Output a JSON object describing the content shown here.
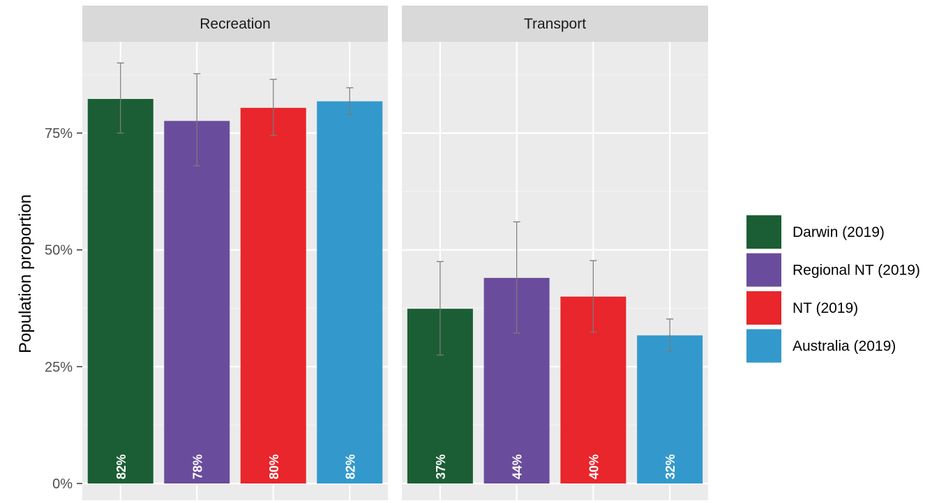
{
  "chart_data": {
    "type": "bar",
    "ylabel": "Population proportion",
    "ylim": [
      0,
      0.95
    ],
    "yticks": [
      {
        "value": 0,
        "label": "0%"
      },
      {
        "value": 0.25,
        "label": "25%"
      },
      {
        "value": 0.5,
        "label": "50%"
      },
      {
        "value": 0.75,
        "label": "75%"
      }
    ],
    "grid": true,
    "legend_position": "right",
    "series": [
      {
        "name": "Darwin (2019)",
        "color": "#1b5e35"
      },
      {
        "name": "Regional NT (2019)",
        "color": "#6a4c9c"
      },
      {
        "name": "NT (2019)",
        "color": "#e8262b"
      },
      {
        "name": "Australia (2019)",
        "color": "#3399cc"
      }
    ],
    "facets": [
      {
        "title": "Recreation",
        "values": [
          0.823,
          0.776,
          0.804,
          0.818
        ],
        "labels": [
          "82%",
          "78%",
          "80%",
          "82%"
        ],
        "error_low": [
          0.75,
          0.68,
          0.745,
          0.79
        ],
        "error_high": [
          0.9,
          0.877,
          0.865,
          0.847
        ]
      },
      {
        "title": "Transport",
        "values": [
          0.374,
          0.44,
          0.4,
          0.317
        ],
        "labels": [
          "37%",
          "44%",
          "40%",
          "32%"
        ],
        "error_low": [
          0.275,
          0.322,
          0.324,
          0.283
        ],
        "error_high": [
          0.475,
          0.56,
          0.477,
          0.352
        ]
      }
    ]
  }
}
